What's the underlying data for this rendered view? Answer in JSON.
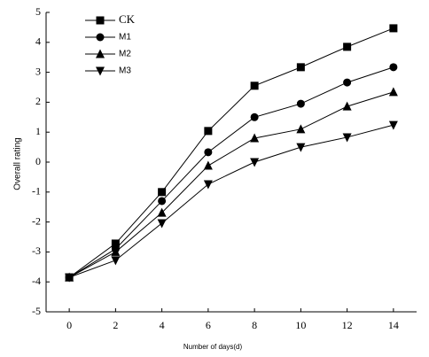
{
  "chart_data": {
    "type": "line",
    "x_label": "Number of days(d)",
    "y_label": "Overall rating",
    "x": [
      0,
      2,
      4,
      6,
      8,
      10,
      12,
      14
    ],
    "xlim": [
      -1,
      15
    ],
    "xticks": [
      0,
      2,
      4,
      6,
      8,
      10,
      12,
      14
    ],
    "ylim": [
      -5,
      5
    ],
    "yticks": [
      -5,
      -4,
      -3,
      -2,
      -1,
      0,
      1,
      2,
      3,
      4,
      5
    ],
    "series": [
      {
        "name": "CK",
        "color": "#000000",
        "marker": "square",
        "values": [
          -3.85,
          -2.72,
          -1.0,
          1.04,
          2.55,
          3.17,
          3.85,
          4.47
        ]
      },
      {
        "name": "M1",
        "color": "#000000",
        "marker": "circle",
        "values": [
          -3.85,
          -2.9,
          -1.3,
          0.33,
          1.5,
          1.95,
          2.66,
          3.17
        ]
      },
      {
        "name": "M2",
        "color": "#000000",
        "marker": "triangle-up",
        "values": [
          -3.85,
          -3.0,
          -1.69,
          -0.12,
          0.8,
          1.1,
          1.86,
          2.34
        ]
      },
      {
        "name": "M3",
        "color": "#000000",
        "marker": "triangle-down",
        "values": [
          -3.85,
          -3.28,
          -2.04,
          -0.74,
          0.0,
          0.5,
          0.83,
          1.24
        ]
      }
    ]
  }
}
